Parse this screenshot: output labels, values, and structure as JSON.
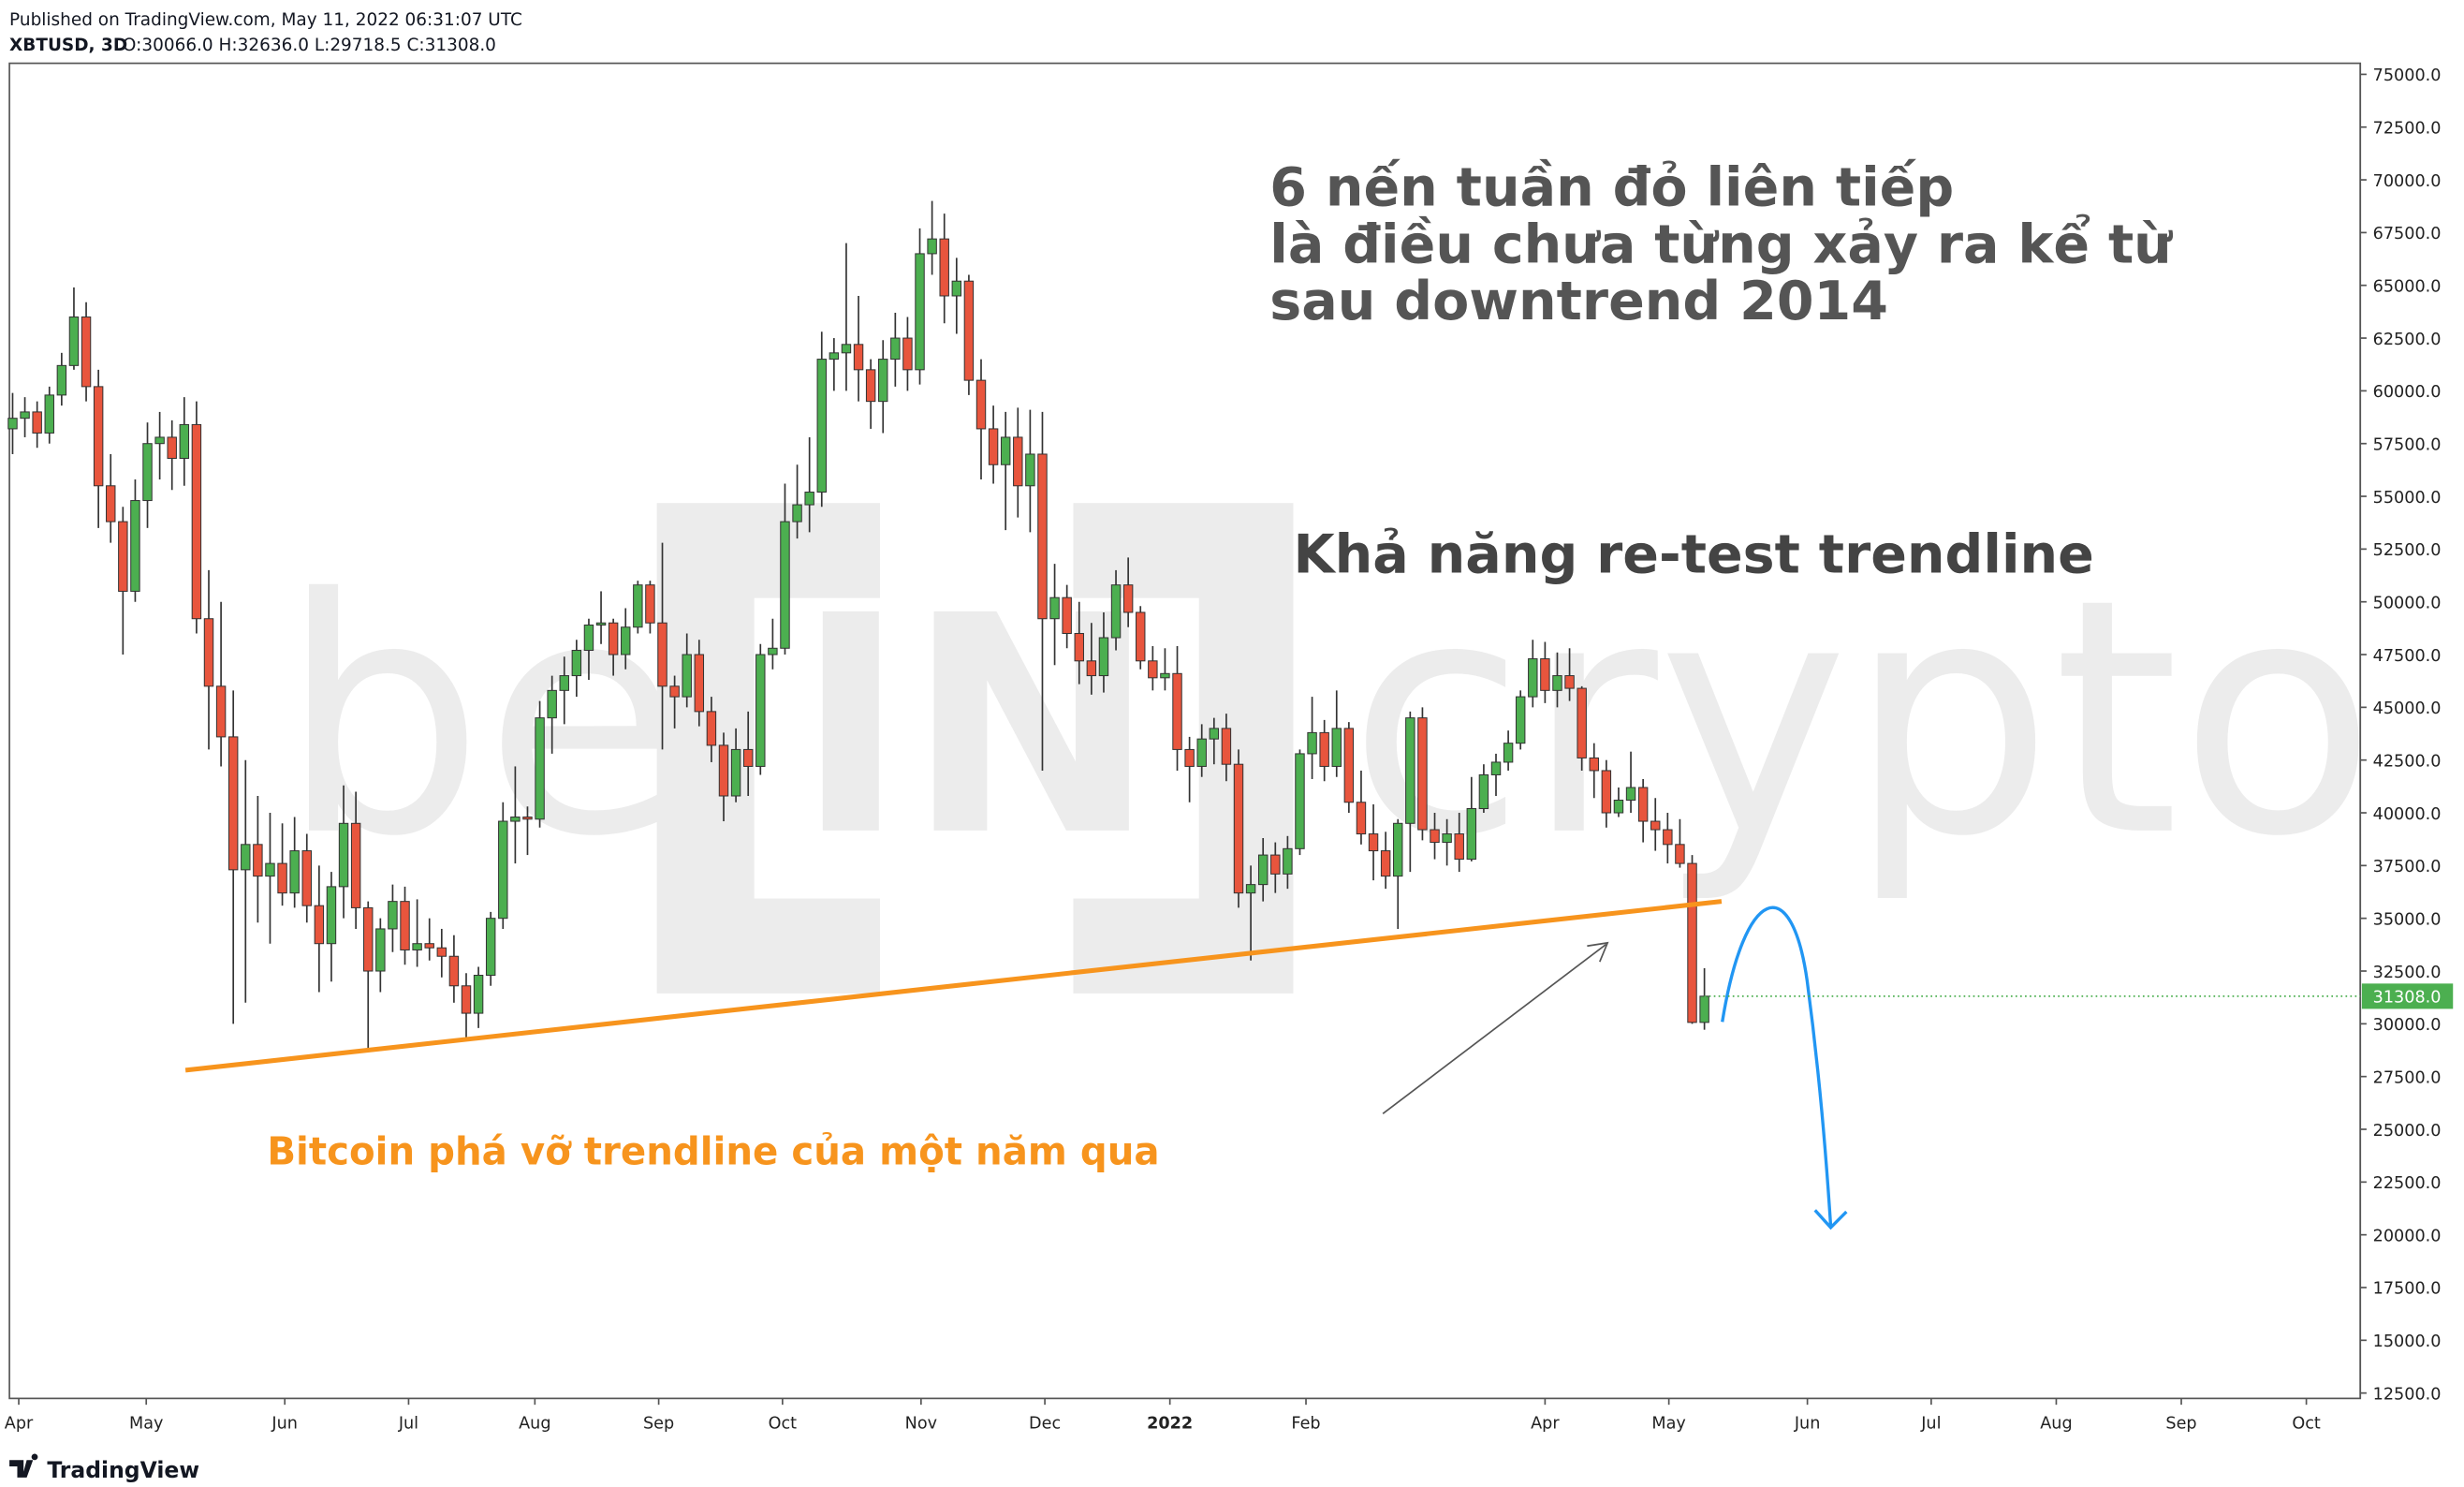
{
  "chart_data": {
    "type": "candlestick",
    "header": {
      "published": "Published on TradingView.com, May 11, 2022 06:31:07 UTC",
      "symbol": "XBTUSD, 3D",
      "ohlc": "O:30066.0 H:32636.0 L:29718.5 C:31308.0"
    },
    "watermark": [
      "be",
      "IN",
      "crypto"
    ],
    "annotations": [
      "6 nến tuần đỏ liên tiếp",
      "là điều chưa từng xảy ra kể từ",
      "sau downtrend 2014",
      "Khả năng re-test trendline",
      "Bitcoin phá vỡ trendline của một năm qua"
    ],
    "footer": "TradingView",
    "up_color": "#4caf50",
    "down_color": "#e8553d",
    "open": [
      58200,
      58700,
      59000,
      58000,
      59800,
      61200,
      63500,
      60200,
      55500,
      53800,
      50500,
      54800,
      57500,
      57800,
      56800,
      58400,
      49200,
      46000,
      43600,
      37300,
      38500,
      37000,
      37600,
      36200,
      38200,
      35600,
      33800,
      36500,
      39500,
      35500,
      32500,
      34500,
      35800,
      33500,
      33800,
      33600,
      33200,
      31800,
      30500,
      32300,
      35000,
      39600,
      39800,
      39700,
      44500,
      45800,
      46500,
      47700,
      48900,
      49000,
      47500,
      48800,
      50800,
      49000,
      46000,
      45500,
      47500,
      44800,
      43200,
      40800,
      43000,
      42200,
      47500,
      47800,
      53800,
      54600,
      55200,
      61500,
      61800,
      62200,
      61000,
      59500,
      61500,
      62500,
      61000,
      66500,
      67200,
      64500,
      65200,
      60500,
      58200,
      56500,
      57800,
      55500,
      57000,
      49200,
      50200,
      48500,
      47200,
      46500,
      48300,
      50800,
      49500,
      47200,
      46400,
      46600,
      43000,
      42200,
      43500,
      44000,
      42300,
      36200,
      36600,
      38000,
      37100,
      38300,
      42800,
      43800,
      42200,
      44000,
      40500,
      39000,
      38200,
      37000,
      39500,
      44500,
      39200,
      38600,
      39000,
      37800,
      40200,
      41800,
      42400,
      43300,
      45500,
      47300,
      45800,
      46500,
      45900,
      42600,
      42000,
      40000,
      40600,
      41200,
      39600,
      39200,
      38500,
      37600,
      30066
    ],
    "high": [
      59900,
      59700,
      59500,
      60200,
      61800,
      64900,
      64200,
      61000,
      57000,
      54500,
      55800,
      58500,
      59000,
      58600,
      59700,
      59500,
      51500,
      50000,
      45800,
      42500,
      40800,
      40000,
      39500,
      39800,
      39000,
      37500,
      37200,
      41300,
      41000,
      35800,
      35000,
      36600,
      36500,
      35900,
      35000,
      34500,
      34200,
      32400,
      32700,
      35300,
      40500,
      42200,
      40300,
      45300,
      46500,
      47400,
      48200,
      49200,
      50500,
      49200,
      49700,
      51000,
      51000,
      52800,
      46500,
      48500,
      48200,
      45500,
      43800,
      44000,
      44800,
      48000,
      49200,
      55600,
      56500,
      57800,
      62800,
      62500,
      67000,
      64500,
      61500,
      62400,
      63700,
      63500,
      67700,
      69000,
      68400,
      66300,
      65500,
      61500,
      59300,
      59000,
      59200,
      59100,
      59000,
      51800,
      50800,
      50000,
      49000,
      49500,
      51500,
      52100,
      49800,
      47900,
      47800,
      47900,
      43600,
      44200,
      44500,
      44700,
      43000,
      37500,
      38800,
      38600,
      38900,
      43000,
      45500,
      44400,
      45800,
      44300,
      42000,
      40400,
      39100,
      39700,
      44800,
      45000,
      40000,
      39700,
      40000,
      41700,
      42300,
      42800,
      43900,
      45800,
      48200,
      48100,
      47600,
      47800,
      46000,
      43300,
      42500,
      41200,
      42900,
      41600,
      40700,
      40000,
      39700,
      38000,
      32636
    ],
    "low": [
      57000,
      57800,
      57300,
      57500,
      59300,
      61000,
      59500,
      53500,
      52800,
      47500,
      50000,
      53500,
      55800,
      55300,
      55500,
      48500,
      43000,
      42200,
      30000,
      31000,
      34800,
      33800,
      35600,
      35500,
      34800,
      31500,
      32000,
      35000,
      34500,
      28800,
      31500,
      33400,
      32800,
      32700,
      33000,
      32200,
      31000,
      29300,
      29800,
      31800,
      34500,
      37600,
      38000,
      39300,
      42800,
      44200,
      45500,
      46300,
      48000,
      46500,
      46800,
      48500,
      48500,
      43000,
      44000,
      45000,
      44100,
      42400,
      39600,
      40500,
      40800,
      41800,
      46800,
      47500,
      53000,
      53300,
      54500,
      60000,
      60000,
      59500,
      58200,
      58000,
      60200,
      60000,
      60300,
      65500,
      63200,
      62700,
      59800,
      55800,
      55600,
      53400,
      54000,
      53300,
      42000,
      47000,
      47800,
      46100,
      45600,
      45700,
      47700,
      48800,
      46800,
      45800,
      45800,
      42000,
      40500,
      41700,
      42300,
      41500,
      35500,
      33000,
      35800,
      36200,
      36400,
      38000,
      41600,
      41500,
      41700,
      40000,
      38500,
      36800,
      36400,
      34500,
      37200,
      38700,
      37800,
      37500,
      37200,
      37700,
      40000,
      40800,
      42000,
      43000,
      45000,
      45200,
      45000,
      45300,
      42000,
      40700,
      39300,
      39800,
      40000,
      38600,
      38200,
      37600,
      37400,
      30000,
      29718.5
    ],
    "close": [
      58700,
      59000,
      58000,
      59800,
      61200,
      63500,
      60200,
      55500,
      53800,
      50500,
      54800,
      57500,
      57800,
      56800,
      58400,
      49200,
      46000,
      43600,
      37300,
      38500,
      37000,
      37600,
      36200,
      38200,
      35600,
      33800,
      36500,
      39500,
      35500,
      32500,
      34500,
      35800,
      33500,
      33800,
      33600,
      33200,
      31800,
      30500,
      32300,
      35000,
      39600,
      39800,
      39700,
      44500,
      45800,
      46500,
      47700,
      48900,
      49000,
      47500,
      48800,
      50800,
      49000,
      46000,
      45500,
      47500,
      44800,
      43200,
      40800,
      43000,
      42200,
      47500,
      47800,
      53800,
      54600,
      55200,
      61500,
      61800,
      62200,
      61000,
      59500,
      61500,
      62500,
      61000,
      66500,
      67200,
      64500,
      65200,
      60500,
      58200,
      56500,
      57800,
      55500,
      57000,
      49200,
      50200,
      48500,
      47200,
      46500,
      48300,
      50800,
      49500,
      47200,
      46400,
      46600,
      43000,
      42200,
      43500,
      44000,
      42300,
      36200,
      36600,
      38000,
      37100,
      38300,
      42800,
      43800,
      42200,
      44000,
      40500,
      39000,
      38200,
      37000,
      39500,
      44500,
      39200,
      38600,
      39000,
      37800,
      40200,
      41800,
      42400,
      43300,
      45500,
      47300,
      45800,
      46500,
      45900,
      42600,
      42000,
      40000,
      40600,
      41200,
      39600,
      39200,
      38500,
      37600,
      30066,
      31308
    ],
    "trendline": {
      "color": "#f7941d",
      "x": [
        14.1,
        139.4
      ],
      "y": [
        27800,
        35800
      ]
    },
    "last_price": {
      "value": 31308,
      "label": "31308.0"
    },
    "xlim": [
      -0.26,
      191.5
    ],
    "xticks": [
      {
        "value": 0.5,
        "label": "Apr"
      },
      {
        "value": 10.9,
        "label": "May"
      },
      {
        "value": 22.2,
        "label": "Jun"
      },
      {
        "value": 32.3,
        "label": "Jul"
      },
      {
        "value": 42.6,
        "label": "Aug"
      },
      {
        "value": 52.7,
        "label": "Sep"
      },
      {
        "value": 62.8,
        "label": "Oct"
      },
      {
        "value": 74.1,
        "label": "Nov"
      },
      {
        "value": 84.2,
        "label": "Dec"
      },
      {
        "value": 94.4,
        "label": "2022"
      },
      {
        "value": 105.5,
        "label": "Feb"
      },
      {
        "value": 125,
        "label": "Apr"
      },
      {
        "value": 135.1,
        "label": "May"
      },
      {
        "value": 146.4,
        "label": "Jun"
      },
      {
        "value": 156.5,
        "label": "Jul"
      },
      {
        "value": 166.7,
        "label": "Aug"
      },
      {
        "value": 176.9,
        "label": "Sep"
      },
      {
        "value": 187.1,
        "label": "Oct"
      }
    ],
    "ylim": [
      12245,
      75525
    ],
    "yticks": [
      {
        "value": 12500,
        "label": "12500.0"
      },
      {
        "value": 15000,
        "label": "15000.0"
      },
      {
        "value": 17500,
        "label": "17500.0"
      },
      {
        "value": 20000,
        "label": "20000.0"
      },
      {
        "value": 22500,
        "label": "22500.0"
      },
      {
        "value": 25000,
        "label": "25000.0"
      },
      {
        "value": 27500,
        "label": "27500.0"
      },
      {
        "value": 30000,
        "label": "30000.0"
      },
      {
        "value": 32500,
        "label": "32500.0"
      },
      {
        "value": 35000,
        "label": "35000.0"
      },
      {
        "value": 37500,
        "label": "37500.0"
      },
      {
        "value": 40000,
        "label": "40000.0"
      },
      {
        "value": 42500,
        "label": "42500.0"
      },
      {
        "value": 45000,
        "label": "45000.0"
      },
      {
        "value": 47500,
        "label": "47500.0"
      },
      {
        "value": 50000,
        "label": "50000.0"
      },
      {
        "value": 52500,
        "label": "52500.0"
      },
      {
        "value": 55000,
        "label": "55000.0"
      },
      {
        "value": 57500,
        "label": "57500.0"
      },
      {
        "value": 60000,
        "label": "60000.0"
      },
      {
        "value": 62500,
        "label": "62500.0"
      },
      {
        "value": 65000,
        "label": "65000.0"
      },
      {
        "value": 67500,
        "label": "67500.0"
      },
      {
        "value": 70000,
        "label": "70000.0"
      },
      {
        "value": 72500,
        "label": "72500.0"
      },
      {
        "value": 75000,
        "label": "75000.0"
      }
    ]
  }
}
